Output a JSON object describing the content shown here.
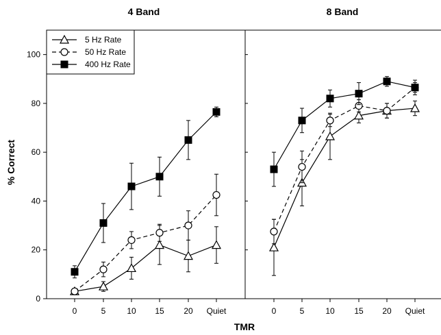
{
  "chart_data": {
    "type": "line",
    "ylabel": "% Correct",
    "xlabel": "TMR",
    "categories": [
      "0",
      "5",
      "10",
      "15",
      "20",
      "Quiet"
    ],
    "ylim": [
      0,
      110
    ],
    "yticks": [
      0,
      20,
      40,
      60,
      80,
      100
    ],
    "legend": {
      "placement": "top-left",
      "entries": [
        "5 Hz Rate",
        "50 Hz Rate",
        "400 Hz Rate"
      ]
    },
    "panels": [
      {
        "title": "4 Band",
        "series": [
          {
            "name": "5 Hz Rate",
            "marker": "open-triangle",
            "line": "solid",
            "values": [
              3,
              5,
              12.5,
              22,
              17.5,
              22
            ],
            "errors": [
              1,
              2,
              4.5,
              8,
              6.5,
              7.5
            ]
          },
          {
            "name": "50 Hz Rate",
            "marker": "open-circle",
            "line": "dashed",
            "values": [
              3,
              12,
              24,
              27,
              30,
              42.5
            ],
            "errors": [
              1,
              3,
              3.5,
              3.5,
              6,
              8.5
            ]
          },
          {
            "name": "400 Hz Rate",
            "marker": "filled-square",
            "line": "solid",
            "values": [
              11,
              31,
              46,
              50,
              65,
              76.5
            ],
            "errors": [
              2.5,
              8,
              9.5,
              8,
              8,
              2
            ]
          }
        ]
      },
      {
        "title": "8 Band",
        "series": [
          {
            "name": "5 Hz Rate",
            "marker": "open-triangle",
            "line": "solid",
            "values": [
              21,
              47.5,
              66.5,
              75,
              77,
              78
            ],
            "errors": [
              11.5,
              9.5,
              9.5,
              3,
              3,
              3
            ]
          },
          {
            "name": "50 Hz Rate",
            "marker": "open-circle",
            "line": "dashed",
            "values": [
              27.5,
              54,
              73,
              79,
              77,
              86.5
            ],
            "errors": [
              5,
              6.5,
              2.5,
              2.5,
              3,
              2
            ]
          },
          {
            "name": "400 Hz Rate",
            "marker": "filled-square",
            "line": "solid",
            "values": [
              53,
              73,
              82,
              84,
              89,
              86.5
            ],
            "errors": [
              7,
              5,
              3.5,
              4.5,
              2,
              3
            ]
          }
        ]
      }
    ]
  }
}
